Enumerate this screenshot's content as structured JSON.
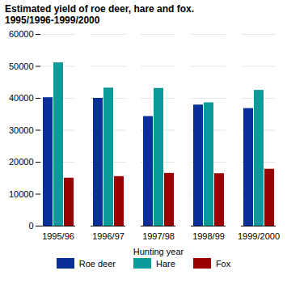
{
  "chart_data": {
    "type": "bar",
    "title": "Estimated yield of roe deer, hare and fox.",
    "subtitle": "1995/1996-1999/2000",
    "x_label": "Hunting year",
    "categories": [
      "1995/96",
      "1996/97",
      "1997/98",
      "1998/99",
      "1999/2000"
    ],
    "series": [
      {
        "name": "Roe deer",
        "color": "#0a2f96",
        "values": [
          40200,
          40000,
          34300,
          37900,
          36800
        ]
      },
      {
        "name": "Hare",
        "color": "#0b9a9a",
        "values": [
          51100,
          43200,
          43100,
          38600,
          42500
        ]
      },
      {
        "name": "Fox",
        "color": "#990000",
        "values": [
          15000,
          15500,
          16500,
          16400,
          17800
        ]
      }
    ],
    "ylim": [
      0,
      60000
    ],
    "yticks": [
      0,
      10000,
      20000,
      30000,
      40000,
      50000,
      60000
    ],
    "grid": true,
    "legend": "bottom"
  }
}
